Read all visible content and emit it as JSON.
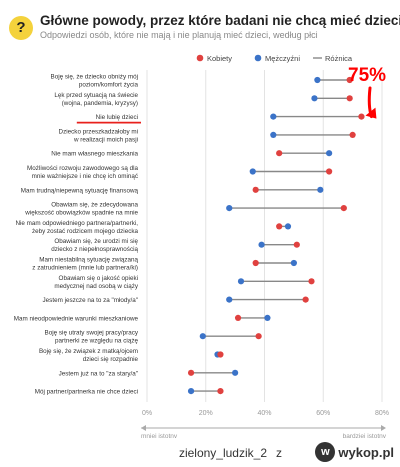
{
  "header": {
    "badge_icon": "?",
    "title": "Główne powody, przez które badani nie chcą mieć dzieci",
    "subtitle": "Odpowiedzi osób, które nie mają i nie planują mieć dzieci, według płci"
  },
  "annotation": {
    "text": "75%",
    "color": "#ff0000"
  },
  "footer": {
    "user": "zielony_ludzik_2",
    "sep": "z",
    "site": "wykop.pl",
    "site_icon": "w"
  },
  "colors": {
    "women": "#e0413f",
    "men": "#3b73c8",
    "diff": "#888888",
    "axis": "#aaaaaa"
  },
  "chart_data": {
    "type": "dumbbell",
    "legend": {
      "position": "top-right",
      "items": [
        "Kobiety",
        "Mężczyźni",
        "Różnica"
      ]
    },
    "xlim": [
      0,
      80
    ],
    "x_ticks": [
      "0%",
      "20%",
      "40%",
      "60%",
      "80%"
    ],
    "x_tick_values": [
      0,
      20,
      40,
      60,
      80
    ],
    "axis_label_left": "mniej istotny",
    "axis_label_right": "bardziej istotny",
    "highlight_index": 2,
    "categories": [
      [
        "Boję się, że dziecko obniży mój",
        "poziom/komfort życia"
      ],
      [
        "Lęk przed sytuacją na świecie",
        "(wojna, pandemia, kryzysy)"
      ],
      [
        "Nie lubię dzieci"
      ],
      [
        "Dziecko przeszkadzałoby mi",
        "w realizacji moich pasji"
      ],
      [
        "Nie mam własnego mieszkania"
      ],
      [
        "Możliwości rozwoju zawodowego są dla",
        "mnie ważniejsze i nie chcę ich ominąć"
      ],
      [
        "Mam trudną/niepewną sytuację finansową"
      ],
      [
        "Obawiam się, że zdecydowana",
        "większość obowiązków spadnie na mnie"
      ],
      [
        "Nie mam odpowiedniego partnera/partnerki,",
        "żeby zostać rodzicem mojego dziecka"
      ],
      [
        "Obawiam się, że urodzi mi się",
        "dziecko z niepełnosprawnością"
      ],
      [
        "Mam niestabilną sytuację związaną",
        "z zatrudnieniem (mnie lub partnera/ki)"
      ],
      [
        "Obawiam się o jakość opieki",
        "medycznej nad osobą w ciąży"
      ],
      [
        "Jestem jeszcze na to za \"młody/a\""
      ],
      [
        "Mam nieodpowiednie warunki mieszkaniowe"
      ],
      [
        "Boję się utraty swojej pracy/pracy",
        "partnerki ze względu na ciążę"
      ],
      [
        "Boję się, że związek z matką/ojcem",
        "dzieci się rozpadnie"
      ],
      [
        "Jestem już na to \"za stary/a\""
      ],
      [
        "Mój partner/partnerka nie chce dzieci"
      ]
    ],
    "series": [
      {
        "name": "Kobiety",
        "values": [
          69,
          69,
          73,
          70,
          45,
          62,
          37,
          67,
          45,
          51,
          37,
          56,
          54,
          31,
          38,
          25,
          15,
          25
        ]
      },
      {
        "name": "Mężczyźni",
        "values": [
          58,
          57,
          43,
          43,
          62,
          36,
          59,
          28,
          48,
          39,
          50,
          32,
          28,
          41,
          19,
          24,
          30,
          15
        ]
      }
    ]
  }
}
